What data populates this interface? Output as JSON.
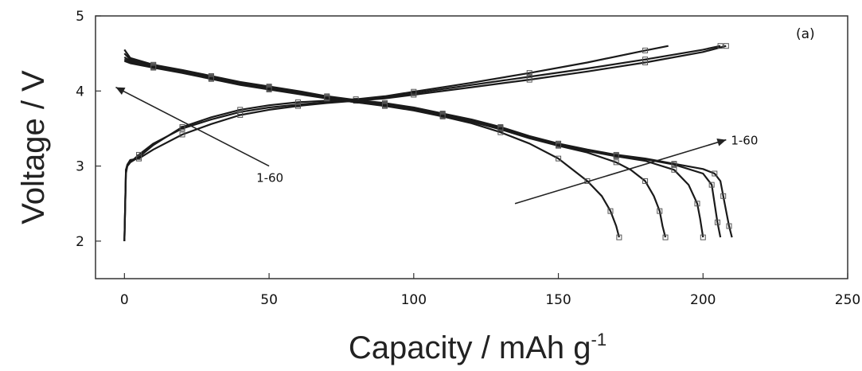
{
  "chart_data": {
    "type": "line",
    "title": "",
    "panel_label": "(a)",
    "xlabel": "Capacity / mAh g",
    "xlabel_sup": "-1",
    "ylabel": "Voltage / V",
    "xlim": [
      -10,
      250
    ],
    "ylim": [
      1.5,
      5
    ],
    "xticks": [
      0,
      50,
      100,
      150,
      200,
      250
    ],
    "xtick_labels": [
      "0",
      "50",
      "100",
      "150",
      "200",
      "250"
    ],
    "yticks": [
      2,
      3,
      4,
      5
    ],
    "ytick_labels": [
      "2",
      "3",
      "4",
      "5"
    ],
    "grid": false,
    "colors": {
      "line": "#1a1a1a",
      "axis": "#333333",
      "marker": "#555555"
    },
    "annotations": [
      {
        "text": "1-60",
        "arrow_from": [
          50,
          3.0
        ],
        "arrow_to": [
          -3,
          4.05
        ]
      },
      {
        "text": "1-60",
        "arrow_from": [
          135,
          2.5
        ],
        "arrow_to": [
          208,
          3.35
        ]
      }
    ],
    "series": [
      {
        "kind": "charge",
        "x": [
          0,
          0.5,
          1,
          2,
          5,
          10,
          20,
          30,
          40,
          50,
          60,
          70,
          80,
          90,
          100,
          120,
          140,
          160,
          180,
          200,
          208
        ],
        "y": [
          2.0,
          2.9,
          3.0,
          3.05,
          3.15,
          3.3,
          3.5,
          3.62,
          3.72,
          3.78,
          3.82,
          3.85,
          3.87,
          3.9,
          3.95,
          4.05,
          4.15,
          4.26,
          4.38,
          4.52,
          4.6
        ]
      },
      {
        "kind": "charge",
        "x": [
          0,
          0.5,
          1,
          2,
          5,
          10,
          20,
          30,
          40,
          50,
          60,
          70,
          80,
          90,
          100,
          120,
          140,
          160,
          180,
          200,
          206
        ],
        "y": [
          2.0,
          2.95,
          3.02,
          3.08,
          3.1,
          3.22,
          3.42,
          3.56,
          3.68,
          3.75,
          3.8,
          3.84,
          3.87,
          3.91,
          3.97,
          4.08,
          4.19,
          4.3,
          4.42,
          4.55,
          4.6
        ]
      },
      {
        "kind": "charge",
        "x": [
          0,
          0.5,
          1,
          2,
          5,
          10,
          20,
          30,
          40,
          50,
          60,
          70,
          80,
          90,
          100,
          120,
          140,
          160,
          180,
          188
        ],
        "y": [
          2.0,
          2.95,
          3.0,
          3.05,
          3.12,
          3.28,
          3.52,
          3.65,
          3.75,
          3.81,
          3.85,
          3.87,
          3.89,
          3.93,
          3.99,
          4.11,
          4.24,
          4.38,
          4.54,
          4.6
        ]
      },
      {
        "kind": "discharge",
        "x": [
          0,
          2,
          10,
          20,
          30,
          40,
          50,
          60,
          70,
          80,
          90,
          100,
          110,
          120,
          130,
          140,
          150,
          160,
          170,
          180,
          190,
          200,
          204,
          206,
          207,
          208,
          209,
          210
        ],
        "y": [
          4.55,
          4.44,
          4.35,
          4.28,
          4.2,
          4.12,
          4.06,
          4.0,
          3.93,
          3.88,
          3.84,
          3.78,
          3.7,
          3.62,
          3.52,
          3.4,
          3.3,
          3.22,
          3.15,
          3.1,
          3.03,
          2.96,
          2.9,
          2.8,
          2.6,
          2.4,
          2.2,
          2.05
        ]
      },
      {
        "kind": "discharge",
        "x": [
          0,
          2,
          10,
          20,
          30,
          40,
          50,
          60,
          70,
          80,
          90,
          100,
          110,
          120,
          130,
          140,
          150,
          160,
          170,
          180,
          190,
          200,
          203,
          204,
          205,
          206
        ],
        "y": [
          4.5,
          4.42,
          4.34,
          4.27,
          4.19,
          4.11,
          4.05,
          3.99,
          3.92,
          3.87,
          3.83,
          3.77,
          3.69,
          3.61,
          3.51,
          3.39,
          3.29,
          3.21,
          3.14,
          3.09,
          3.02,
          2.9,
          2.75,
          2.5,
          2.25,
          2.05
        ]
      },
      {
        "kind": "discharge",
        "x": [
          0,
          2,
          10,
          20,
          30,
          40,
          50,
          60,
          70,
          80,
          90,
          100,
          110,
          120,
          130,
          140,
          150,
          160,
          170,
          180,
          190,
          195,
          198,
          199,
          200
        ],
        "y": [
          4.45,
          4.4,
          4.33,
          4.26,
          4.18,
          4.1,
          4.04,
          3.98,
          3.91,
          3.86,
          3.82,
          3.76,
          3.68,
          3.6,
          3.5,
          3.38,
          3.28,
          3.2,
          3.13,
          3.07,
          2.95,
          2.75,
          2.5,
          2.3,
          2.05
        ]
      },
      {
        "kind": "discharge",
        "x": [
          0,
          2,
          10,
          20,
          30,
          40,
          50,
          60,
          70,
          80,
          90,
          100,
          110,
          120,
          130,
          140,
          150,
          160,
          170,
          175,
          180,
          183,
          185,
          186,
          187
        ],
        "y": [
          4.42,
          4.38,
          4.32,
          4.25,
          4.17,
          4.09,
          4.03,
          3.97,
          3.9,
          3.85,
          3.81,
          3.75,
          3.67,
          3.59,
          3.49,
          3.37,
          3.27,
          3.18,
          3.05,
          2.95,
          2.8,
          2.6,
          2.4,
          2.2,
          2.05
        ]
      },
      {
        "kind": "discharge",
        "x": [
          0,
          2,
          10,
          20,
          30,
          40,
          50,
          60,
          70,
          80,
          90,
          100,
          110,
          120,
          130,
          140,
          150,
          155,
          160,
          165,
          168,
          170,
          171
        ],
        "y": [
          4.4,
          4.37,
          4.31,
          4.24,
          4.16,
          4.08,
          4.02,
          3.96,
          3.9,
          3.85,
          3.8,
          3.74,
          3.66,
          3.57,
          3.45,
          3.3,
          3.1,
          2.95,
          2.8,
          2.6,
          2.4,
          2.2,
          2.05
        ]
      }
    ]
  }
}
